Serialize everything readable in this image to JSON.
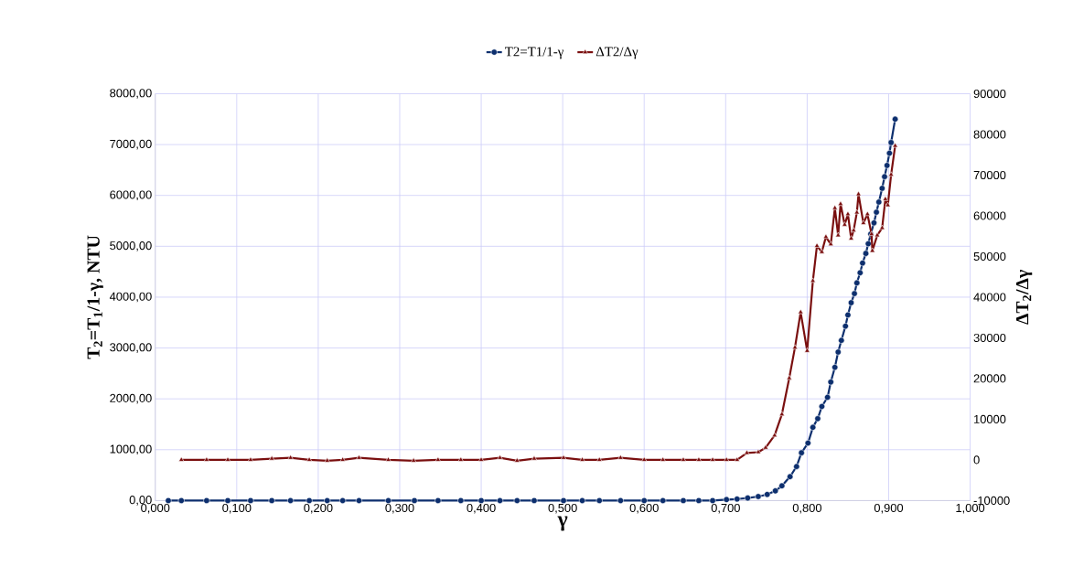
{
  "chart_data": {
    "type": "line",
    "xlabel": "γ",
    "ylabel": "T$_{2}$=T$_{1}$/1-γ, NTU",
    "y2label": "ΔT$_{2}$/Δγ",
    "xlim": [
      0,
      1
    ],
    "xticks": [
      {
        "value": 0,
        "label": "0,000"
      },
      {
        "value": 0.1,
        "label": "0,100"
      },
      {
        "value": 0.2,
        "label": "0,200"
      },
      {
        "value": 0.3,
        "label": "0,300"
      },
      {
        "value": 0.4,
        "label": "0,400"
      },
      {
        "value": 0.5,
        "label": "0,500"
      },
      {
        "value": 0.6,
        "label": "0,600"
      },
      {
        "value": 0.7,
        "label": "0,700"
      },
      {
        "value": 0.8,
        "label": "0,800"
      },
      {
        "value": 0.9,
        "label": "0,900"
      },
      {
        "value": 1,
        "label": "1,000"
      }
    ],
    "ylim": [
      0,
      8000
    ],
    "yticks": [
      {
        "value": 0,
        "label": "0,00"
      },
      {
        "value": 1000,
        "label": "1000,00"
      },
      {
        "value": 2000,
        "label": "2000,00"
      },
      {
        "value": 3000,
        "label": "3000,00"
      },
      {
        "value": 4000,
        "label": "4000,00"
      },
      {
        "value": 5000,
        "label": "5000,00"
      },
      {
        "value": 6000,
        "label": "6000,00"
      },
      {
        "value": 7000,
        "label": "7000,00"
      },
      {
        "value": 8000,
        "label": "8000,00"
      }
    ],
    "y2lim": [
      -10000,
      90000
    ],
    "y2ticks": [
      -10000,
      0,
      10000,
      20000,
      30000,
      40000,
      50000,
      60000,
      70000,
      80000,
      90000
    ],
    "grid": true,
    "legend": "top",
    "line_style": "solid",
    "series": [
      {
        "name": "T2=T1/1-γ",
        "color": "#0d2f6e",
        "marker": "circle",
        "x": [
          0.016,
          0.032,
          0.063,
          0.089,
          0.117,
          0.143,
          0.166,
          0.189,
          0.211,
          0.23,
          0.25,
          0.286,
          0.318,
          0.347,
          0.375,
          0.4,
          0.423,
          0.444,
          0.465,
          0.501,
          0.524,
          0.545,
          0.571,
          0.6,
          0.623,
          0.648,
          0.667,
          0.684,
          0.701,
          0.714,
          0.727,
          0.74,
          0.751,
          0.761,
          0.769,
          0.779,
          0.787,
          0.793,
          0.801,
          0.807,
          0.813,
          0.818,
          0.825,
          0.829,
          0.834,
          0.838,
          0.842,
          0.847,
          0.85,
          0.854,
          0.858,
          0.861,
          0.865,
          0.868,
          0.872,
          0.875,
          0.878,
          0.882,
          0.885,
          0.888,
          0.892,
          0.895,
          0.898,
          0.901,
          0.903,
          0.908
        ],
        "values": [
          0,
          0,
          0,
          0,
          0,
          0,
          0,
          0,
          0,
          0,
          0,
          0,
          0,
          0,
          0,
          0,
          0,
          0,
          0,
          0,
          0,
          0,
          0,
          0,
          0,
          0,
          0,
          0,
          20,
          30,
          50,
          80,
          120,
          190,
          290,
          470,
          670,
          940,
          1130,
          1440,
          1610,
          1850,
          2030,
          2330,
          2620,
          2920,
          3150,
          3430,
          3650,
          3890,
          4070,
          4280,
          4480,
          4670,
          4860,
          5050,
          5240,
          5460,
          5670,
          5870,
          6140,
          6370,
          6590,
          6830,
          7040,
          7500
        ]
      },
      {
        "name": "ΔT2/Δγ",
        "color": "#7a0f0f",
        "marker": "triangle",
        "axis": "y2",
        "x": [
          0.032,
          0.063,
          0.089,
          0.117,
          0.143,
          0.166,
          0.189,
          0.211,
          0.23,
          0.25,
          0.286,
          0.317,
          0.347,
          0.375,
          0.4,
          0.423,
          0.444,
          0.465,
          0.501,
          0.524,
          0.545,
          0.571,
          0.6,
          0.623,
          0.648,
          0.667,
          0.684,
          0.701,
          0.714,
          0.726,
          0.74,
          0.749,
          0.76,
          0.769,
          0.778,
          0.785,
          0.792,
          0.8,
          0.807,
          0.812,
          0.818,
          0.823,
          0.829,
          0.834,
          0.838,
          0.841,
          0.846,
          0.85,
          0.854,
          0.857,
          0.861,
          0.863,
          0.869,
          0.874,
          0.879,
          0.88,
          0.886,
          0.892,
          0.896,
          0.899,
          0.903,
          0.908
        ],
        "values": [
          0,
          0,
          0,
          0,
          300,
          500,
          0,
          -200,
          0,
          500,
          0,
          -200,
          0,
          0,
          0,
          500,
          -200,
          300,
          500,
          0,
          0,
          500,
          0,
          0,
          0,
          0,
          0,
          0,
          0,
          1700,
          1900,
          3000,
          6000,
          11200,
          20100,
          27600,
          36300,
          26800,
          44000,
          52600,
          51100,
          54800,
          53000,
          61900,
          55200,
          62900,
          57800,
          60400,
          54400,
          56400,
          60800,
          65300,
          58200,
          60400,
          55500,
          51400,
          55200,
          57000,
          64100,
          62600,
          70100,
          77200
        ]
      }
    ]
  }
}
